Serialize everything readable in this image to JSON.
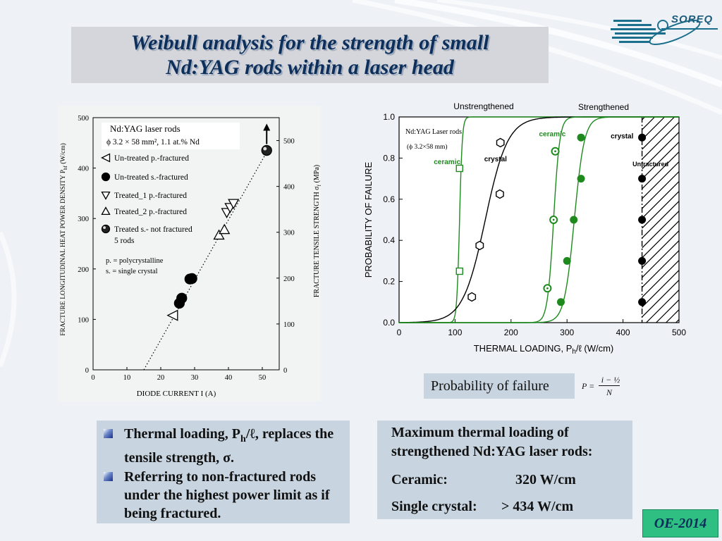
{
  "slide": {
    "title_line1": "Weibull analysis for the strength of small",
    "title_line2": "Nd:YAG rods within a laser head",
    "logo_text": "SOREQ",
    "footer_tag": "OE-2014"
  },
  "probability_box": {
    "label": "Probability of failure"
  },
  "formula": {
    "lhs": "P =",
    "numerator": "i − ½",
    "denominator": "N"
  },
  "bullets": [
    {
      "pre": "Thermal loading, P",
      "sub": "h",
      "post": "/ℓ, replaces the tensile strength, σ."
    },
    {
      "text": "Referring  to non-fractured rods under the highest power limit as if being fractured."
    }
  ],
  "max_loading": {
    "heading": "Maximum thermal loading of strengthened Nd:YAG laser rods:",
    "rows": [
      {
        "label": "Ceramic:",
        "value": "320 W/cm"
      },
      {
        "label": "Single crystal:",
        "value": "> 434 W/cm"
      }
    ]
  },
  "colors": {
    "ceramic": "#1e8a1e",
    "crystal": "#000000",
    "title": "#0d2f5c",
    "panel": "#c8d5e1",
    "tag": "#2fbf83"
  },
  "chart_data": [
    {
      "type": "scatter",
      "xlabel": "DIODE  CURRENT  I  (A)",
      "ylabel": "FRACTURE  LONGITUDINAL  HEAT  POWER  DENSITY  P",
      "ylabel_sub": "hf",
      "ylabel_unit": "  (W/cm)",
      "y2label": "FRACTURE  TENSILE  STRENGTH  σ",
      "y2label_sub": "f",
      "y2label_unit": "  (MPa)",
      "xlim": [
        0,
        55
      ],
      "ylim": [
        0,
        500
      ],
      "y2lim": [
        0,
        550
      ],
      "xticks": [
        0,
        10,
        20,
        30,
        40,
        50
      ],
      "yticks": [
        0,
        100,
        200,
        300,
        400,
        500
      ],
      "y2ticks": [
        0,
        100,
        200,
        300,
        400,
        500
      ],
      "legend_title": "Nd:YAG laser rods",
      "legend_subtitle": "ϕ 3.2 × 58 mm², 1.1 at.% Nd",
      "legend_placement": "top-left",
      "notes": [
        "p. = polycrystalline",
        "s. = single crystal"
      ],
      "fit_line": {
        "x": [
          15,
          52
        ],
        "y": [
          0,
          440
        ]
      },
      "series": [
        {
          "name": "Un-treated p.-fractured",
          "marker": "triangle-left-open",
          "points": [
            [
              23.5,
              108
            ]
          ]
        },
        {
          "name": "Un-treated s.-fractured",
          "marker": "circle-filled",
          "points": [
            [
              25.5,
              132
            ],
            [
              26.2,
              142
            ],
            [
              28.6,
              180
            ],
            [
              29.2,
              181
            ]
          ]
        },
        {
          "name": "Treated_1  p.-fractured",
          "marker": "triangle-down-open",
          "points": [
            [
              39.5,
              312
            ],
            [
              40.5,
              322
            ],
            [
              41.5,
              330
            ]
          ]
        },
        {
          "name": "Treated_2  p.-fractured",
          "marker": "triangle-up-open",
          "points": [
            [
              37.2,
              267
            ],
            [
              38.8,
              278
            ]
          ]
        },
        {
          "name": "Treated s.- not fractured",
          "name_line2": "5 rods",
          "marker": "sphere",
          "points": [
            [
              51.3,
              435
            ]
          ]
        }
      ]
    },
    {
      "type": "line",
      "title_left": "Unstrengthened",
      "title_right": "Strengthened",
      "xlabel": "THERMAL LOADING, P",
      "xlabel_sub": "h",
      "xlabel_unit": "/ℓ (W/cm)",
      "ylabel": "PROBABILITY   OF   FAILURE",
      "xlim": [
        0,
        500
      ],
      "ylim": [
        0,
        1
      ],
      "xticks": [
        0,
        100,
        200,
        300,
        400,
        500
      ],
      "yticks": [
        0.0,
        0.2,
        0.4,
        0.6,
        0.8,
        1.0
      ],
      "legend_title": "Nd:YAG Laser rods",
      "legend_subtitle": "(ϕ 3.2×58 mm)",
      "annotations": [
        {
          "text": "ceramic",
          "color": "ceramic",
          "x": 62,
          "y": 0.77
        },
        {
          "text": "crystal",
          "color": "crystal",
          "x": 152,
          "y": 0.785
        },
        {
          "text": "ceramic",
          "color": "ceramic",
          "x": 250,
          "y": 0.905
        },
        {
          "text": "crystal",
          "color": "crystal",
          "x": 378,
          "y": 0.895
        },
        {
          "text": "Unfractured",
          "color": "crystal",
          "x": 417,
          "y": 0.76
        }
      ],
      "unfractured_limit": 434,
      "series": [
        {
          "name": "Unstrengthened ceramic",
          "color": "ceramic",
          "marker": "square-open",
          "points": [
            [
              108,
              0.25
            ],
            [
              108,
              0.75
            ]
          ],
          "curve": {
            "x0": 108,
            "width": 2.5
          }
        },
        {
          "name": "Unstrengthened crystal",
          "color": "crystal",
          "marker": "hexagon-open",
          "points": [
            [
              130,
              0.125
            ],
            [
              144,
              0.375
            ],
            [
              180,
              0.625
            ],
            [
              181,
              0.875
            ]
          ],
          "curve": {
            "x0": 154,
            "width": 20
          }
        },
        {
          "name": "Strengthened ceramic",
          "color": "ceramic",
          "marker": "circle-bullseye",
          "points": [
            [
              265,
              0.167
            ],
            [
              276,
              0.5
            ],
            [
              279,
              0.833
            ]
          ],
          "curve": {
            "x0": 276,
            "width": 5.5
          }
        },
        {
          "name": "Strengthened crystal",
          "color": "ceramic",
          "marker": "circle-filled",
          "points": [
            [
              289,
              0.1
            ],
            [
              300,
              0.3
            ],
            [
              312,
              0.5
            ],
            [
              325,
              0.7
            ],
            [
              325,
              0.9
            ]
          ],
          "curve": {
            "x0": 313,
            "width": 9
          }
        },
        {
          "name": "Unfractured",
          "color": "crystal",
          "marker": "circle-filled-black",
          "points": [
            [
              434,
              0.1
            ],
            [
              434,
              0.3
            ],
            [
              434,
              0.5
            ],
            [
              434,
              0.7
            ],
            [
              434,
              0.9
            ]
          ]
        }
      ]
    }
  ]
}
